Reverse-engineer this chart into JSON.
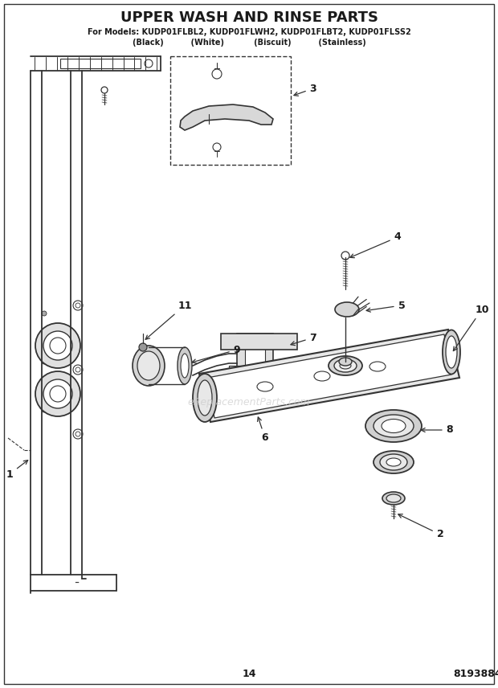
{
  "title": "UPPER WASH AND RINSE PARTS",
  "subtitle": "For Models: KUDP01FLBL2, KUDP01FLWH2, KUDP01FLBT2, KUDP01FLSS2",
  "subtitle2": "(Black)          (White)           (Biscuit)          (Stainless)",
  "page_num": "14",
  "doc_num": "8193884",
  "bg_color": "#ffffff",
  "text_color": "#1a1a1a",
  "line_color": "#333333",
  "watermark": "eReplacementParts.com",
  "watermark_color": "#cccccc"
}
